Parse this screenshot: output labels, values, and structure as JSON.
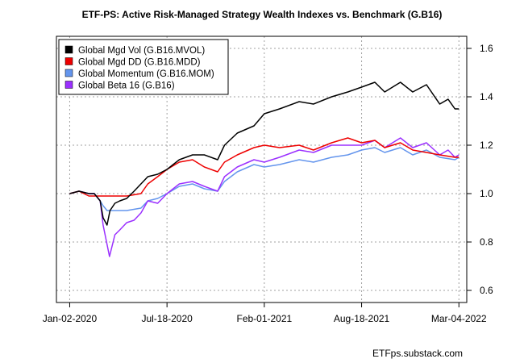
{
  "chart_data": {
    "type": "line",
    "title": "ETF-PS: Active Risk-Managed Strategy Wealth Indexes vs. Benchmark (G.B16)",
    "credit": "ETFps.substack.com",
    "xlabel": "",
    "ylabel": "",
    "x_tick_labels": [
      "Jan-02-2020",
      "Jul-18-2020",
      "Feb-01-2021",
      "Aug-18-2021",
      "Mar-04-2022"
    ],
    "y_ticks": [
      0.6,
      0.8,
      1.0,
      1.2,
      1.4,
      1.6
    ],
    "y_tick_labels": [
      "0.6",
      "0.8",
      "1.0",
      "1.2",
      "1.4",
      "1.6"
    ],
    "xlim": [
      "Dec-06-2019",
      "Mar-20-2022"
    ],
    "ylim": [
      0.55,
      1.65
    ],
    "y_axis_side": "right",
    "grid": true,
    "legend_position": "top-left",
    "series": [
      {
        "name": "Global Mgd Vol (G.B16.MVOL)",
        "color": "#000000",
        "points": [
          [
            "Jan-02-2020",
            1.0
          ],
          [
            "Jan-21-2020",
            1.01
          ],
          [
            "Feb-10-2020",
            1.0
          ],
          [
            "Feb-21-2020",
            1.0
          ],
          [
            "Mar-04-2020",
            0.97
          ],
          [
            "Mar-10-2020",
            0.9
          ],
          [
            "Mar-18-2020",
            0.87
          ],
          [
            "Mar-24-2020",
            0.93
          ],
          [
            "Apr-03-2020",
            0.96
          ],
          [
            "Apr-13-2020",
            0.97
          ],
          [
            "Apr-27-2020",
            0.98
          ],
          [
            "May-12-2020",
            1.01
          ],
          [
            "May-26-2020",
            1.04
          ],
          [
            "Jun-09-2020",
            1.07
          ],
          [
            "Jun-29-2020",
            1.08
          ],
          [
            "Jul-18-2020",
            1.1
          ],
          [
            "Aug-12-2020",
            1.14
          ],
          [
            "Sep-08-2020",
            1.16
          ],
          [
            "Oct-02-2020",
            1.16
          ],
          [
            "Oct-29-2020",
            1.14
          ],
          [
            "Nov-12-2020",
            1.2
          ],
          [
            "Dec-08-2020",
            1.25
          ],
          [
            "Jan-11-2021",
            1.28
          ],
          [
            "Feb-01-2021",
            1.33
          ],
          [
            "Mar-04-2021",
            1.35
          ],
          [
            "Apr-13-2021",
            1.38
          ],
          [
            "May-12-2021",
            1.37
          ],
          [
            "Jun-18-2021",
            1.4
          ],
          [
            "Jul-21-2021",
            1.42
          ],
          [
            "Aug-18-2021",
            1.44
          ],
          [
            "Sep-14-2021",
            1.46
          ],
          [
            "Oct-04-2021",
            1.42
          ],
          [
            "Nov-05-2021",
            1.46
          ],
          [
            "Nov-30-2021",
            1.42
          ],
          [
            "Dec-28-2021",
            1.45
          ],
          [
            "Jan-24-2022",
            1.37
          ],
          [
            "Feb-10-2022",
            1.39
          ],
          [
            "Feb-24-2022",
            1.35
          ],
          [
            "Mar-04-2022",
            1.35
          ]
        ]
      },
      {
        "name": "Global Mgd DD (G.B16.MDD)",
        "color": "#ee0000",
        "points": [
          [
            "Jan-02-2020",
            1.0
          ],
          [
            "Jan-21-2020",
            1.01
          ],
          [
            "Feb-10-2020",
            0.99
          ],
          [
            "Feb-21-2020",
            0.99
          ],
          [
            "Mar-18-2020",
            0.99
          ],
          [
            "Apr-27-2020",
            0.99
          ],
          [
            "May-26-2020",
            1.0
          ],
          [
            "Jun-09-2020",
            1.04
          ],
          [
            "Jun-29-2020",
            1.07
          ],
          [
            "Jul-18-2020",
            1.1
          ],
          [
            "Aug-12-2020",
            1.13
          ],
          [
            "Sep-08-2020",
            1.14
          ],
          [
            "Oct-02-2020",
            1.11
          ],
          [
            "Oct-29-2020",
            1.09
          ],
          [
            "Nov-12-2020",
            1.13
          ],
          [
            "Dec-08-2020",
            1.16
          ],
          [
            "Jan-11-2021",
            1.19
          ],
          [
            "Feb-01-2021",
            1.2
          ],
          [
            "Mar-04-2021",
            1.19
          ],
          [
            "Apr-13-2021",
            1.2
          ],
          [
            "May-12-2021",
            1.18
          ],
          [
            "Jun-18-2021",
            1.21
          ],
          [
            "Jul-21-2021",
            1.23
          ],
          [
            "Aug-18-2021",
            1.21
          ],
          [
            "Sep-14-2021",
            1.22
          ],
          [
            "Oct-04-2021",
            1.19
          ],
          [
            "Nov-05-2021",
            1.21
          ],
          [
            "Nov-30-2021",
            1.18
          ],
          [
            "Dec-28-2021",
            1.17
          ],
          [
            "Jan-24-2022",
            1.16
          ],
          [
            "Feb-24-2022",
            1.15
          ],
          [
            "Mar-04-2022",
            1.15
          ]
        ]
      },
      {
        "name": "Global Momentum (G.B16.MOM)",
        "color": "#6495ed",
        "points": [
          [
            "Jan-02-2020",
            1.0
          ],
          [
            "Jan-21-2020",
            1.01
          ],
          [
            "Feb-10-2020",
            1.0
          ],
          [
            "Feb-21-2020",
            1.0
          ],
          [
            "Mar-04-2020",
            0.97
          ],
          [
            "Mar-10-2020",
            0.95
          ],
          [
            "Mar-18-2020",
            0.93
          ],
          [
            "Apr-27-2020",
            0.93
          ],
          [
            "May-26-2020",
            0.94
          ],
          [
            "Jun-09-2020",
            0.97
          ],
          [
            "Jun-29-2020",
            0.98
          ],
          [
            "Jul-18-2020",
            1.0
          ],
          [
            "Aug-12-2020",
            1.03
          ],
          [
            "Sep-08-2020",
            1.04
          ],
          [
            "Oct-02-2020",
            1.02
          ],
          [
            "Oct-29-2020",
            1.01
          ],
          [
            "Nov-12-2020",
            1.05
          ],
          [
            "Dec-08-2020",
            1.09
          ],
          [
            "Jan-11-2021",
            1.12
          ],
          [
            "Feb-01-2021",
            1.11
          ],
          [
            "Mar-04-2021",
            1.12
          ],
          [
            "Apr-13-2021",
            1.14
          ],
          [
            "May-12-2021",
            1.13
          ],
          [
            "Jun-18-2021",
            1.15
          ],
          [
            "Jul-21-2021",
            1.16
          ],
          [
            "Aug-18-2021",
            1.18
          ],
          [
            "Sep-14-2021",
            1.19
          ],
          [
            "Oct-04-2021",
            1.17
          ],
          [
            "Nov-05-2021",
            1.19
          ],
          [
            "Nov-30-2021",
            1.16
          ],
          [
            "Dec-28-2021",
            1.18
          ],
          [
            "Jan-24-2022",
            1.15
          ],
          [
            "Feb-24-2022",
            1.14
          ],
          [
            "Mar-04-2022",
            1.15
          ]
        ]
      },
      {
        "name": "Global Beta 16 (G.B16)",
        "color": "#9b30ff",
        "points": [
          [
            "Jan-02-2020",
            1.0
          ],
          [
            "Jan-21-2020",
            1.01
          ],
          [
            "Feb-10-2020",
            1.0
          ],
          [
            "Feb-21-2020",
            1.0
          ],
          [
            "Mar-04-2020",
            0.97
          ],
          [
            "Mar-10-2020",
            0.87
          ],
          [
            "Mar-18-2020",
            0.79
          ],
          [
            "Mar-23-2020",
            0.74
          ],
          [
            "Apr-03-2020",
            0.83
          ],
          [
            "Apr-13-2020",
            0.85
          ],
          [
            "Apr-27-2020",
            0.88
          ],
          [
            "May-12-2020",
            0.89
          ],
          [
            "May-26-2020",
            0.92
          ],
          [
            "Jun-09-2020",
            0.97
          ],
          [
            "Jun-29-2020",
            0.96
          ],
          [
            "Jul-18-2020",
            1.0
          ],
          [
            "Aug-12-2020",
            1.04
          ],
          [
            "Sep-08-2020",
            1.05
          ],
          [
            "Oct-02-2020",
            1.03
          ],
          [
            "Oct-29-2020",
            1.01
          ],
          [
            "Nov-12-2020",
            1.07
          ],
          [
            "Dec-08-2020",
            1.11
          ],
          [
            "Jan-11-2021",
            1.14
          ],
          [
            "Feb-01-2021",
            1.13
          ],
          [
            "Mar-04-2021",
            1.15
          ],
          [
            "Apr-13-2021",
            1.18
          ],
          [
            "May-12-2021",
            1.17
          ],
          [
            "Jun-18-2021",
            1.2
          ],
          [
            "Jul-21-2021",
            1.2
          ],
          [
            "Aug-18-2021",
            1.2
          ],
          [
            "Sep-14-2021",
            1.22
          ],
          [
            "Oct-04-2021",
            1.19
          ],
          [
            "Nov-05-2021",
            1.23
          ],
          [
            "Nov-30-2021",
            1.19
          ],
          [
            "Dec-28-2021",
            1.21
          ],
          [
            "Jan-24-2022",
            1.16
          ],
          [
            "Feb-10-2022",
            1.18
          ],
          [
            "Feb-24-2022",
            1.15
          ],
          [
            "Mar-04-2022",
            1.16
          ]
        ]
      }
    ]
  }
}
